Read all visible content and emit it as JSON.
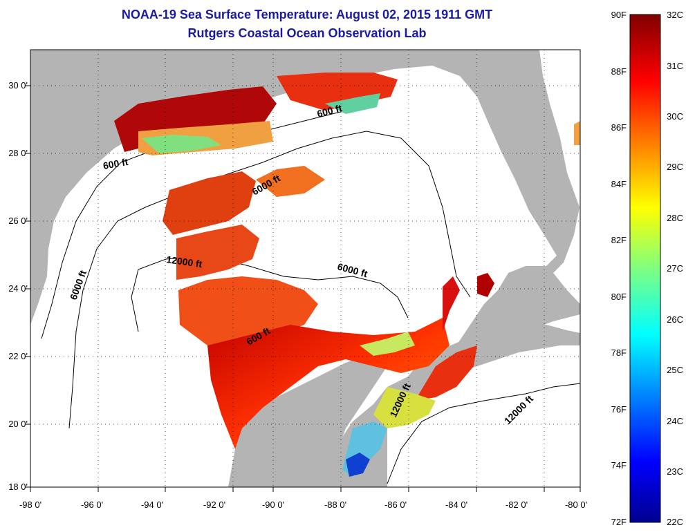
{
  "header": {
    "title": "NOAA-19 Sea Surface Temperature:  August 02, 2015 1911 GMT",
    "subtitle": "Rutgers Coastal Ocean Observation Lab"
  },
  "map": {
    "x_ticks": [
      "-98 0'",
      "-96 0'",
      "-94 0'",
      "-92 0'",
      "-90 0'",
      "-88 0'",
      "-86 0'",
      "-84 0'",
      "-82 0'",
      "-80 0'"
    ],
    "y_ticks": [
      "30 0'",
      "28 0'",
      "26 0'",
      "24 0'",
      "22 0'",
      "20 0'",
      "18 0'"
    ],
    "contour_labels": [
      "600 ft",
      "600 ft",
      "6000 ft",
      "6000 ft",
      "6000 ft",
      "12000 ft",
      "600 ft",
      "12000 ft",
      "12000 ft"
    ],
    "colors": {
      "land": "#b4b4b4",
      "ocean": "#ffffff",
      "title": "#1a1aa6"
    }
  },
  "colorbar": {
    "fahrenheit": [
      "90F",
      "88F",
      "86F",
      "84F",
      "82F",
      "80F",
      "78F",
      "76F",
      "74F",
      "72F"
    ],
    "celsius": [
      "32C",
      "31C",
      "30C",
      "29C",
      "28C",
      "27C",
      "26C",
      "25C",
      "24C",
      "23C",
      "22C"
    ]
  }
}
